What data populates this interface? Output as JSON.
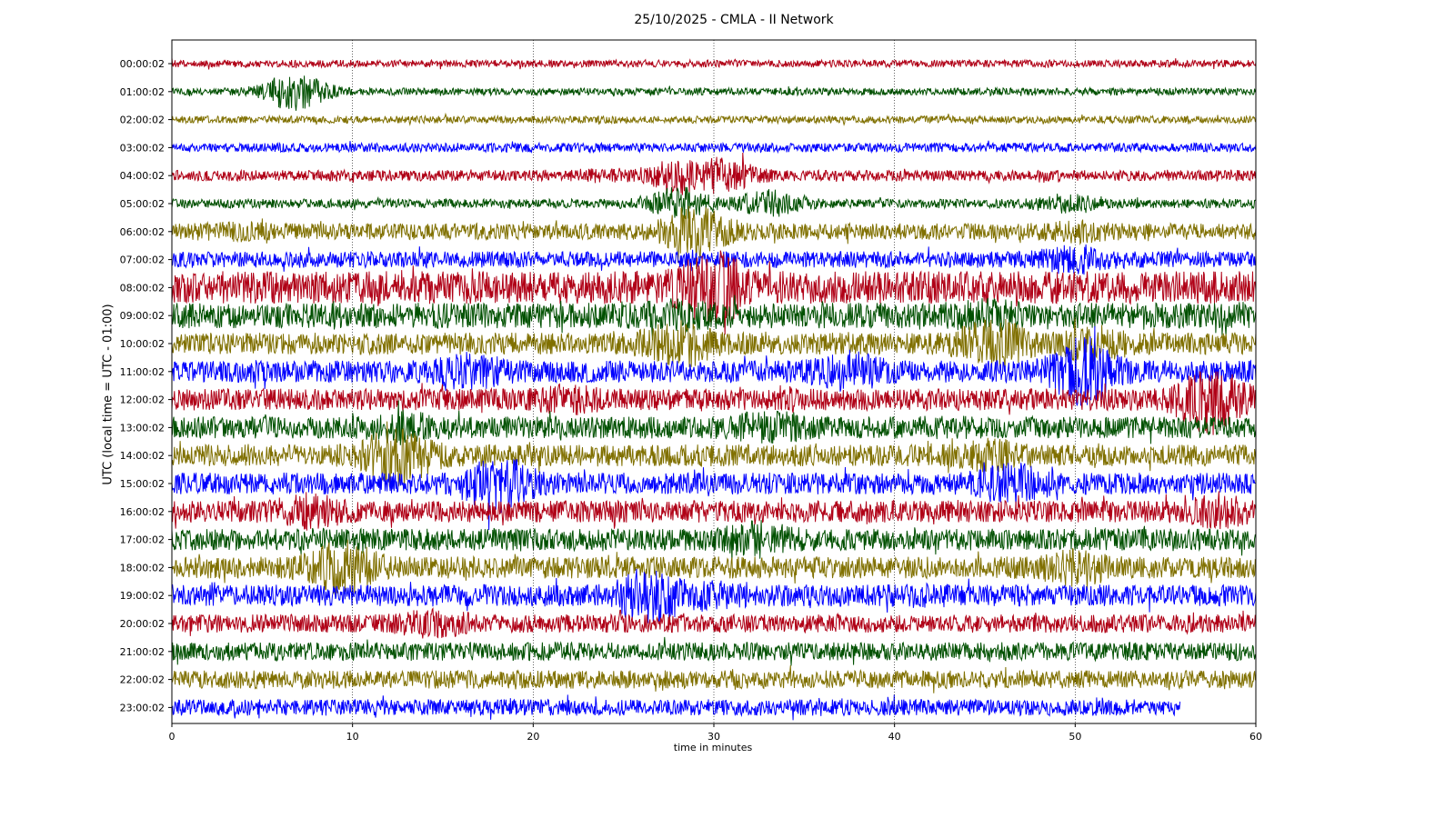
{
  "chart_data": {
    "type": "line",
    "title": "25/10/2025 - CMLA - II Network",
    "xlabel": "time in minutes",
    "ylabel": "UTC (local time = UTC - 01:00)",
    "xlim": [
      0,
      60
    ],
    "x_ticks": [
      "0",
      "10",
      "20",
      "30",
      "40",
      "50",
      "60"
    ],
    "x_gridlines": [
      10,
      20,
      30,
      40,
      50
    ],
    "grid": "vertical dotted lines at x ticks",
    "colors": [
      "#b00016",
      "#005000",
      "#807000",
      "#0000ff"
    ],
    "series": [
      {
        "name": "00:00:02",
        "amplitude": 4,
        "events": []
      },
      {
        "name": "01:00:02",
        "amplitude": 4,
        "events": [
          {
            "t": 6.8,
            "amp": 22
          }
        ]
      },
      {
        "name": "02:00:02",
        "amplitude": 4,
        "events": []
      },
      {
        "name": "03:00:02",
        "amplitude": 5,
        "events": []
      },
      {
        "name": "04:00:02",
        "amplitude": 6,
        "events": [
          {
            "t": 24.0,
            "amp": 9
          },
          {
            "t": 28.0,
            "amp": 20
          },
          {
            "t": 30.5,
            "amp": 22
          }
        ]
      },
      {
        "name": "05:00:02",
        "amplitude": 5,
        "events": [
          {
            "t": 28.0,
            "amp": 20
          },
          {
            "t": 33.0,
            "amp": 16
          },
          {
            "t": 49.5,
            "amp": 12
          }
        ]
      },
      {
        "name": "06:00:02",
        "amplitude": 9,
        "events": [
          {
            "t": 3.5,
            "amp": 12
          },
          {
            "t": 29.0,
            "amp": 30
          },
          {
            "t": 50.0,
            "amp": 14
          }
        ]
      },
      {
        "name": "07:00:02",
        "amplitude": 9,
        "events": [
          {
            "t": 50.0,
            "amp": 18
          }
        ]
      },
      {
        "name": "08:00:02",
        "amplitude": 18,
        "events": [
          {
            "t": 30.0,
            "amp": 45
          }
        ]
      },
      {
        "name": "09:00:02",
        "amplitude": 14,
        "events": [
          {
            "t": 28.0,
            "amp": 20
          },
          {
            "t": 45.0,
            "amp": 20
          }
        ]
      },
      {
        "name": "10:00:02",
        "amplitude": 12,
        "events": [
          {
            "t": 28.0,
            "amp": 30
          },
          {
            "t": 45.5,
            "amp": 30
          },
          {
            "t": 51.0,
            "amp": 22
          }
        ]
      },
      {
        "name": "11:00:02",
        "amplitude": 12,
        "events": [
          {
            "t": 16.5,
            "amp": 22
          },
          {
            "t": 37.5,
            "amp": 24
          },
          {
            "t": 50.5,
            "amp": 40
          }
        ]
      },
      {
        "name": "12:00:02",
        "amplitude": 12,
        "events": [
          {
            "t": 22.0,
            "amp": 18
          },
          {
            "t": 57.5,
            "amp": 40
          }
        ]
      },
      {
        "name": "13:00:02",
        "amplitude": 12,
        "events": [
          {
            "t": 13.0,
            "amp": 20
          },
          {
            "t": 33.0,
            "amp": 22
          },
          {
            "t": 43.0,
            "amp": 14
          }
        ]
      },
      {
        "name": "14:00:02",
        "amplitude": 12,
        "events": [
          {
            "t": 12.5,
            "amp": 36
          },
          {
            "t": 45.5,
            "amp": 20
          }
        ]
      },
      {
        "name": "15:00:02",
        "amplitude": 12,
        "events": [
          {
            "t": 18.0,
            "amp": 35
          },
          {
            "t": 46.5,
            "amp": 26
          }
        ]
      },
      {
        "name": "16:00:02",
        "amplitude": 12,
        "events": [
          {
            "t": 7.5,
            "amp": 22
          },
          {
            "t": 58.0,
            "amp": 20
          }
        ]
      },
      {
        "name": "17:00:02",
        "amplitude": 12,
        "events": [
          {
            "t": 32.5,
            "amp": 22
          }
        ]
      },
      {
        "name": "18:00:02",
        "amplitude": 12,
        "events": [
          {
            "t": 9.5,
            "amp": 32
          },
          {
            "t": 50.0,
            "amp": 22
          }
        ]
      },
      {
        "name": "19:00:02",
        "amplitude": 12,
        "events": [
          {
            "t": 26.5,
            "amp": 34
          },
          {
            "t": 29.5,
            "amp": 18
          },
          {
            "t": 41.5,
            "amp": 14
          }
        ]
      },
      {
        "name": "20:00:02",
        "amplitude": 10,
        "events": [
          {
            "t": 14.5,
            "amp": 18
          }
        ]
      },
      {
        "name": "21:00:02",
        "amplitude": 10,
        "events": []
      },
      {
        "name": "22:00:02",
        "amplitude": 10,
        "events": []
      },
      {
        "name": "23:00:02",
        "amplitude": 9,
        "events": [],
        "end_minute": 55.8
      }
    ]
  }
}
